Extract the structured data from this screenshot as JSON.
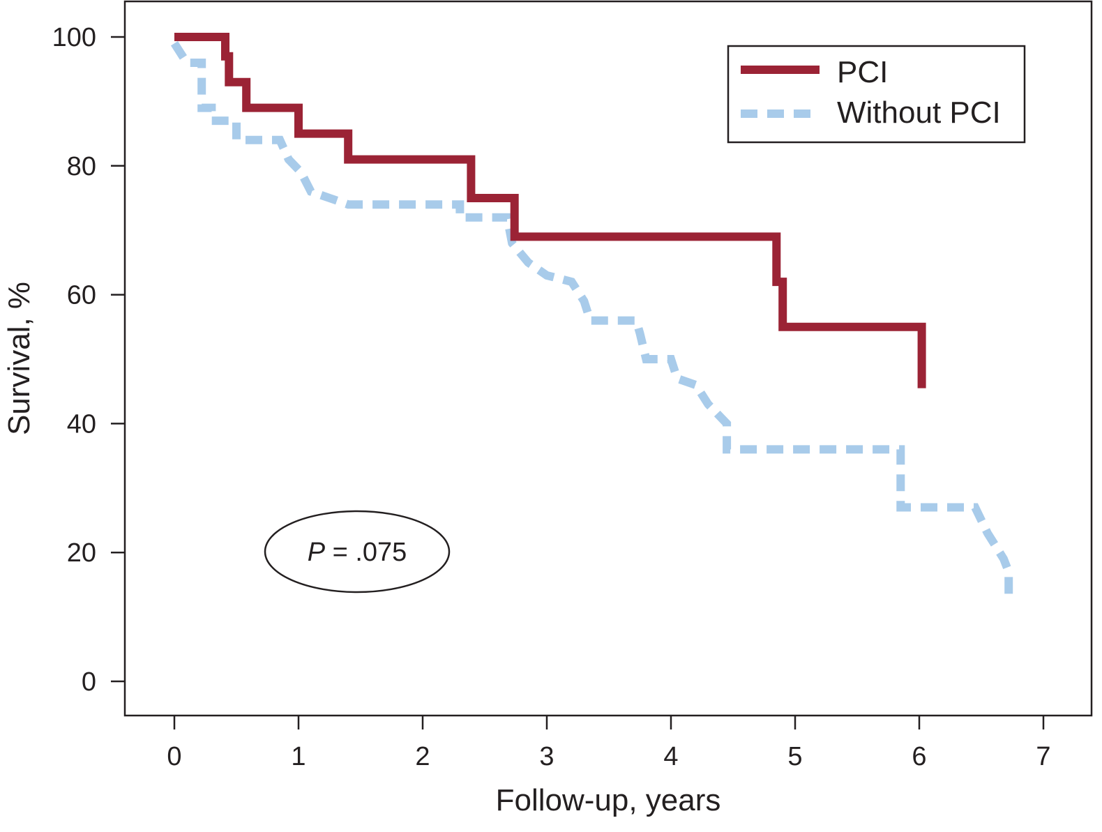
{
  "chart_data": {
    "type": "line",
    "step": true,
    "title": "",
    "xlabel": "Follow-up, years",
    "ylabel": "Survival, %",
    "xlim": [
      0,
      7
    ],
    "ylim": [
      0,
      100
    ],
    "xticks": [
      "0",
      "1",
      "2",
      "3",
      "4",
      "5",
      "6",
      "7"
    ],
    "yticks": [
      "0",
      "20",
      "40",
      "60",
      "80",
      "100"
    ],
    "grid": false,
    "legend_position": "top-right",
    "annotation": {
      "italic": "P",
      "text": " = .075"
    },
    "series": [
      {
        "name": "PCI",
        "color": "#9b2335",
        "style": "solid",
        "points": [
          [
            0,
            100
          ],
          [
            0.41,
            100
          ],
          [
            0.41,
            97
          ],
          [
            0.44,
            97
          ],
          [
            0.44,
            93
          ],
          [
            0.58,
            93
          ],
          [
            0.58,
            89
          ],
          [
            1.0,
            89
          ],
          [
            1.0,
            85
          ],
          [
            1.4,
            85
          ],
          [
            1.4,
            81
          ],
          [
            2.39,
            81
          ],
          [
            2.39,
            75
          ],
          [
            2.74,
            75
          ],
          [
            2.74,
            69
          ],
          [
            4.85,
            69
          ],
          [
            4.85,
            62
          ],
          [
            4.9,
            62
          ],
          [
            4.9,
            55
          ],
          [
            6.02,
            55
          ],
          [
            6.02,
            45.5
          ]
        ]
      },
      {
        "name": "Without PCI",
        "color": "#a8cbea",
        "style": "dashed",
        "points": [
          [
            0,
            99
          ],
          [
            0.1,
            96
          ],
          [
            0.22,
            96
          ],
          [
            0.22,
            89
          ],
          [
            0.3,
            89
          ],
          [
            0.3,
            87
          ],
          [
            0.5,
            87
          ],
          [
            0.5,
            84
          ],
          [
            0.85,
            84
          ],
          [
            0.92,
            81
          ],
          [
            1.02,
            79
          ],
          [
            1.1,
            76
          ],
          [
            1.25,
            75
          ],
          [
            1.4,
            74
          ],
          [
            2.3,
            74
          ],
          [
            2.3,
            72
          ],
          [
            2.68,
            72
          ],
          [
            2.72,
            68
          ],
          [
            2.85,
            65
          ],
          [
            3.0,
            63
          ],
          [
            3.2,
            62
          ],
          [
            3.3,
            59
          ],
          [
            3.35,
            56
          ],
          [
            3.72,
            56
          ],
          [
            3.75,
            54
          ],
          [
            3.8,
            50
          ],
          [
            4.0,
            50
          ],
          [
            4.05,
            47
          ],
          [
            4.2,
            46
          ],
          [
            4.3,
            43
          ],
          [
            4.45,
            40
          ],
          [
            4.45,
            36
          ],
          [
            5.85,
            36
          ],
          [
            5.85,
            27
          ],
          [
            6.45,
            27
          ],
          [
            6.55,
            23
          ],
          [
            6.68,
            19
          ],
          [
            6.72,
            17
          ],
          [
            6.72,
            13
          ]
        ]
      }
    ]
  }
}
